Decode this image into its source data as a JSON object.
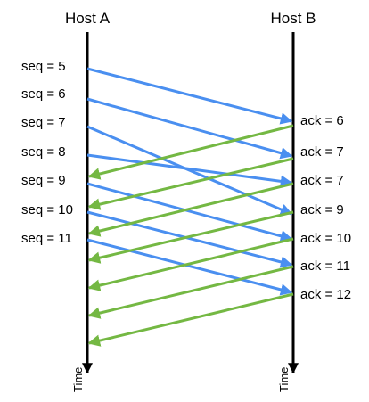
{
  "hosts": {
    "a": "Host A",
    "b": "Host B"
  },
  "time_label": "Time",
  "seq_labels": [
    "seq = 5",
    "seq = 6",
    "seq = 7",
    "seq = 8",
    "seq = 9",
    "seq = 10",
    "seq = 11"
  ],
  "ack_labels": [
    "ack = 6",
    "ack = 7",
    "ack = 7",
    "ack = 9",
    "ack = 10",
    "ack = 11",
    "ack = 12"
  ],
  "colors": {
    "data": "#4a8ff0",
    "ack": "#74b843",
    "axis": "#000000"
  }
}
